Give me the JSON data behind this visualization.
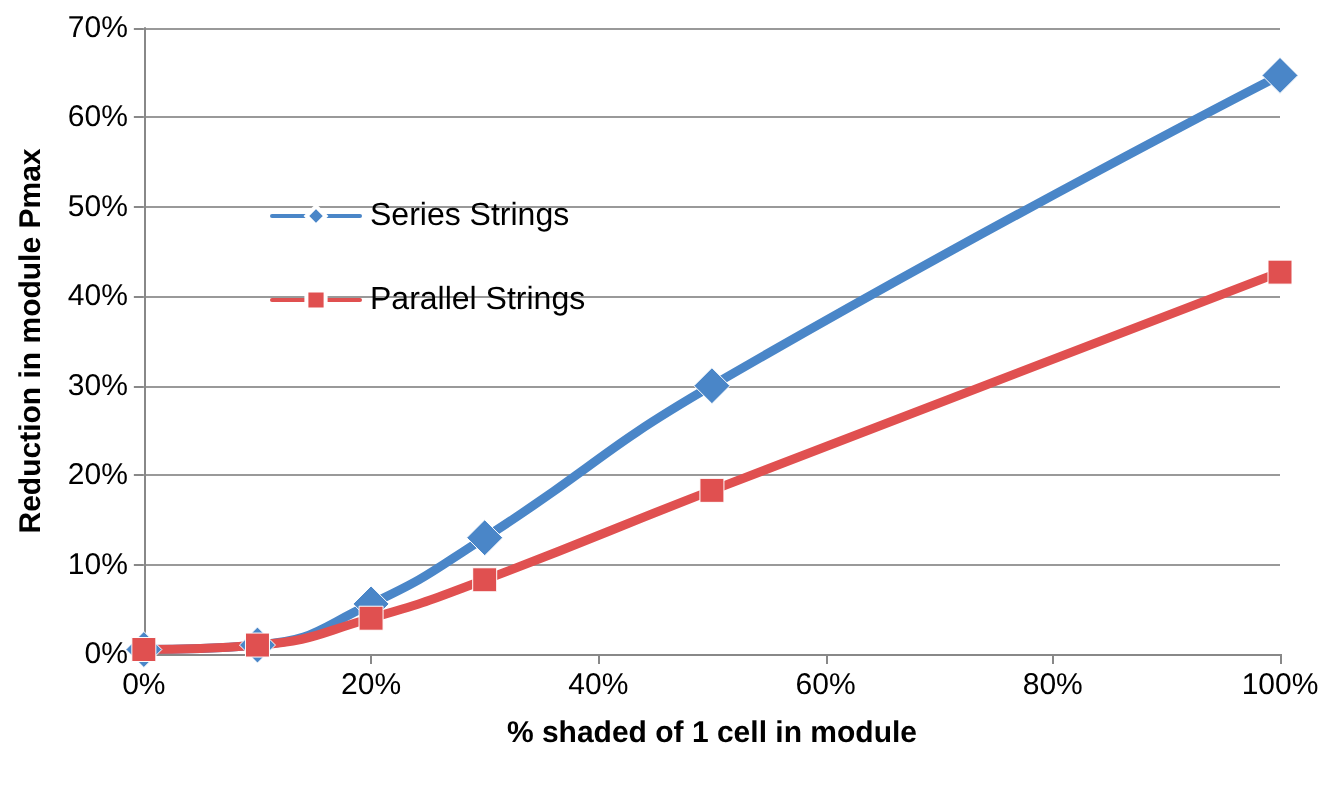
{
  "chart_data": {
    "type": "line",
    "xlabel": "% shaded of 1 cell in module",
    "ylabel": "Reduction in module Pmax",
    "x": [
      0,
      10,
      20,
      30,
      50,
      100
    ],
    "series": [
      {
        "name": "Series Strings",
        "color": "#4a86c8",
        "marker": "diamond",
        "values": [
          0.5,
          1,
          5.6,
          13,
          30,
          64.7
        ]
      },
      {
        "name": "Parallel Strings",
        "color": "#e05050",
        "marker": "square",
        "values": [
          0.5,
          1,
          4,
          8.3,
          18.3,
          42.7
        ]
      }
    ],
    "xlim": [
      0,
      100
    ],
    "xticks": [
      {
        "value": 0,
        "label": "0%"
      },
      {
        "value": 20,
        "label": "20%"
      },
      {
        "value": 40,
        "label": "40%"
      },
      {
        "value": 60,
        "label": "60%"
      },
      {
        "value": 80,
        "label": "80%"
      },
      {
        "value": 100,
        "label": "100%"
      }
    ],
    "ylim": [
      0,
      70
    ],
    "yticks": [
      {
        "value": 0,
        "label": "0%"
      },
      {
        "value": 10,
        "label": "10%"
      },
      {
        "value": 20,
        "label": "20%"
      },
      {
        "value": 30,
        "label": "30%"
      },
      {
        "value": 40,
        "label": "40%"
      },
      {
        "value": 50,
        "label": "50%"
      },
      {
        "value": 60,
        "label": "60%"
      },
      {
        "value": 70,
        "label": "70%"
      }
    ],
    "grid": "y",
    "legend": "left",
    "line_style": "solid"
  }
}
